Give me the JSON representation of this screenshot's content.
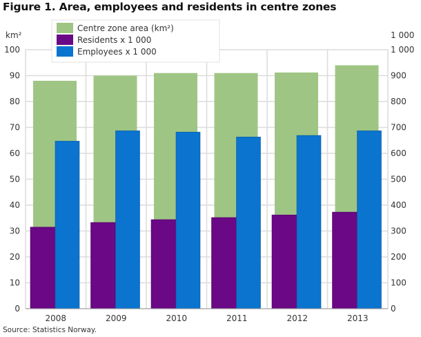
{
  "title": "Figure 1. Area, employees and residents in centre zones",
  "source": "Source: Statistics Norway.",
  "chart_data": {
    "type": "bar",
    "title": "Figure 1. Area, employees and residents in centre zones",
    "categories": [
      "2008",
      "2009",
      "2010",
      "2011",
      "2012",
      "2013"
    ],
    "left_axis": {
      "label": "km²",
      "range": [
        0,
        100
      ],
      "ticks": [
        "0",
        "10",
        "20",
        "30",
        "40",
        "50",
        "60",
        "70",
        "80",
        "90",
        "100"
      ]
    },
    "right_axis": {
      "label": "1 000",
      "range": [
        0,
        1000
      ],
      "ticks": [
        "0",
        "100",
        "200",
        "300",
        "400",
        "500",
        "600",
        "700",
        "800",
        "900",
        "1 000"
      ]
    },
    "grid": true,
    "legend_placement": "top",
    "series": [
      {
        "name": "Centre zone area (km²)",
        "axis": "left",
        "color": "#9fc584",
        "values": [
          88,
          90,
          91,
          91,
          91.2,
          94
        ]
      },
      {
        "name": "Residents x 1 000",
        "axis": "right",
        "color": "#6a0885",
        "values": [
          315,
          333,
          344,
          352,
          362,
          373
        ]
      },
      {
        "name": "Employees x 1 000",
        "axis": "right",
        "color": "#0a74cf",
        "values": [
          647,
          687,
          682,
          663,
          669,
          687
        ]
      }
    ]
  }
}
